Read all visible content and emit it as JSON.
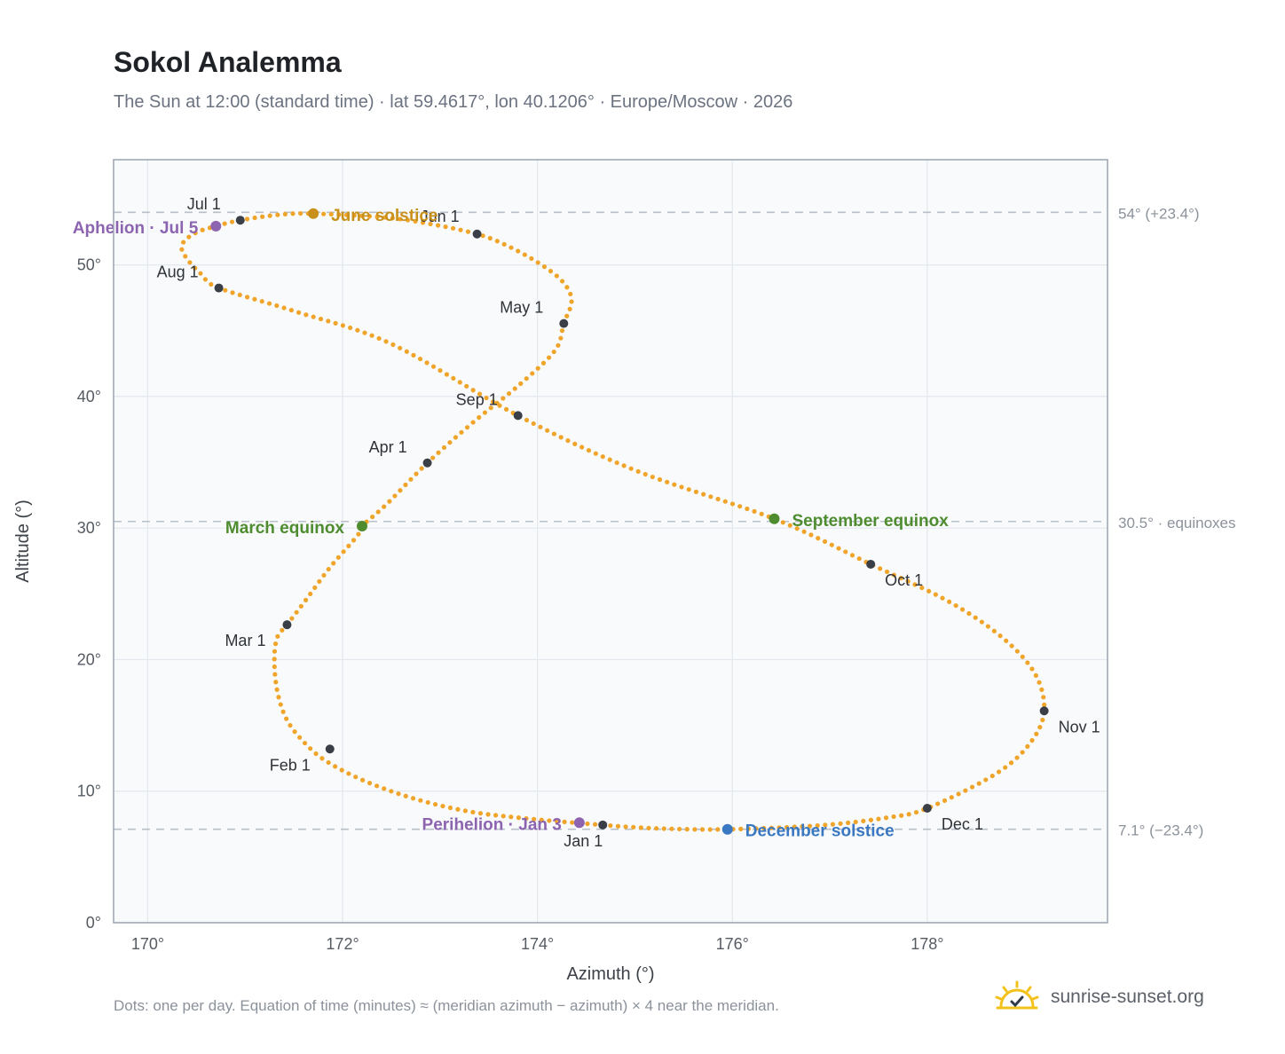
{
  "header": {
    "title": "Sokol Analemma",
    "subtitle": "The Sun at 12:00 (standard time) · lat 59.4617°, lon 40.1206° · Europe/Moscow · 2026"
  },
  "footer": {
    "note": "Dots: one per day. Equation of time (minutes) ≈ (meridian azimuth − azimuth) × 4 near the meridian.",
    "brand": "sunrise-sunset.org",
    "brand_icon": "sun-logo-icon"
  },
  "colors": {
    "path": "#f0a52a",
    "month_marker": "#3a3f47",
    "june_solstice": "#c8901a",
    "december_solstice": "#3b78c2",
    "equinox": "#4e8c2f",
    "apsis": "#8d64b0",
    "plot_background": "#f8fafc",
    "frame": "#9aa4b2"
  },
  "chart_data": {
    "type": "scatter",
    "xlabel": "Azimuth (°)",
    "ylabel": "Altitude (°)",
    "xlim": [
      169.65,
      179.85
    ],
    "ylim": [
      0,
      58
    ],
    "x_ticks": [
      170,
      172,
      174,
      176,
      178
    ],
    "x_tick_labels": [
      "170°",
      "172°",
      "174°",
      "176°",
      "178°"
    ],
    "y_ticks": [
      0,
      10,
      20,
      30,
      40,
      50
    ],
    "y_tick_labels": [
      "0°",
      "10°",
      "20°",
      "30°",
      "40°",
      "50°"
    ],
    "grid": true,
    "reference_lines": [
      {
        "y": 54.0,
        "label": "54° (+23.4°)"
      },
      {
        "y": 30.5,
        "label": "30.5° · equinoxes"
      },
      {
        "y": 7.1,
        "label": "7.1° (−23.4°)"
      }
    ],
    "series": [
      {
        "points": [
          [
            174.67,
            7.43
          ],
          [
            174.3,
            7.65
          ],
          [
            173.85,
            7.95
          ],
          [
            173.3,
            8.45
          ],
          [
            172.75,
            9.4
          ],
          [
            172.25,
            10.7
          ],
          [
            171.85,
            12.2
          ],
          [
            171.62,
            13.6
          ],
          [
            171.43,
            15.4
          ],
          [
            171.33,
            17.6
          ],
          [
            171.3,
            20.0
          ],
          [
            171.33,
            21.7
          ],
          [
            171.43,
            22.65
          ],
          [
            171.62,
            24.5
          ],
          [
            171.87,
            27.0
          ],
          [
            172.15,
            29.4
          ],
          [
            172.2,
            30.15
          ],
          [
            172.45,
            31.8
          ],
          [
            172.87,
            34.95
          ],
          [
            173.35,
            38.1
          ],
          [
            173.8,
            40.8
          ],
          [
            174.18,
            43.5
          ],
          [
            174.27,
            45.55
          ],
          [
            174.35,
            47.3
          ],
          [
            174.25,
            48.8
          ],
          [
            173.98,
            50.3
          ],
          [
            173.65,
            51.6
          ],
          [
            173.38,
            52.35
          ],
          [
            172.95,
            53.05
          ],
          [
            172.45,
            53.6
          ],
          [
            171.7,
            53.9
          ],
          [
            171.35,
            53.82
          ],
          [
            170.95,
            53.4
          ],
          [
            170.7,
            52.95
          ],
          [
            170.48,
            52.4
          ],
          [
            170.35,
            51.5
          ],
          [
            170.4,
            50.5
          ],
          [
            170.55,
            49.3
          ],
          [
            170.73,
            48.25
          ],
          [
            171.5,
            46.5
          ],
          [
            172.5,
            44.0
          ],
          [
            173.8,
            38.55
          ],
          [
            175.0,
            34.4
          ],
          [
            176.43,
            30.7
          ],
          [
            177.42,
            27.25
          ],
          [
            178.2,
            24.5
          ],
          [
            178.75,
            21.8
          ],
          [
            179.1,
            19.0
          ],
          [
            179.2,
            16.1
          ],
          [
            179.05,
            13.6
          ],
          [
            178.7,
            11.3
          ],
          [
            178.0,
            8.7
          ],
          [
            177.6,
            8.0
          ],
          [
            176.9,
            7.4
          ],
          [
            175.95,
            7.1
          ],
          [
            175.3,
            7.15
          ],
          [
            174.9,
            7.3
          ],
          [
            174.67,
            7.43
          ]
        ]
      }
    ],
    "month_markers": [
      {
        "label": "Jan 1",
        "x": 174.67,
        "y": 7.43
      },
      {
        "label": "Feb 1",
        "x": 171.87,
        "y": 13.2
      },
      {
        "label": "Mar 1",
        "x": 171.43,
        "y": 22.65
      },
      {
        "label": "Apr 1",
        "x": 172.87,
        "y": 34.95
      },
      {
        "label": "May 1",
        "x": 174.27,
        "y": 45.55
      },
      {
        "label": "Jun 1",
        "x": 173.38,
        "y": 52.35
      },
      {
        "label": "Jul 1",
        "x": 170.95,
        "y": 53.4
      },
      {
        "label": "Aug 1",
        "x": 170.73,
        "y": 48.25
      },
      {
        "label": "Sep 1",
        "x": 173.8,
        "y": 38.55
      },
      {
        "label": "Oct 1",
        "x": 177.42,
        "y": 27.25
      },
      {
        "label": "Nov 1",
        "x": 179.2,
        "y": 16.1
      },
      {
        "label": "Dec 1",
        "x": 178.0,
        "y": 8.7
      }
    ],
    "events": [
      {
        "label": "June solstice",
        "x": 171.7,
        "y": 53.9,
        "color": "#c8901a"
      },
      {
        "label": "December solstice",
        "x": 175.95,
        "y": 7.1,
        "color": "#3b78c2"
      },
      {
        "label": "March equinox",
        "x": 172.2,
        "y": 30.15,
        "color": "#4e8c2f"
      },
      {
        "label": "September equinox",
        "x": 176.43,
        "y": 30.7,
        "color": "#4e8c2f"
      },
      {
        "label": "Aphelion · Jul 5",
        "x": 170.7,
        "y": 52.95,
        "color": "#8d64b0"
      },
      {
        "label": "Perihelion · Jan 3",
        "x": 174.43,
        "y": 7.6,
        "color": "#8d64b0"
      }
    ]
  }
}
